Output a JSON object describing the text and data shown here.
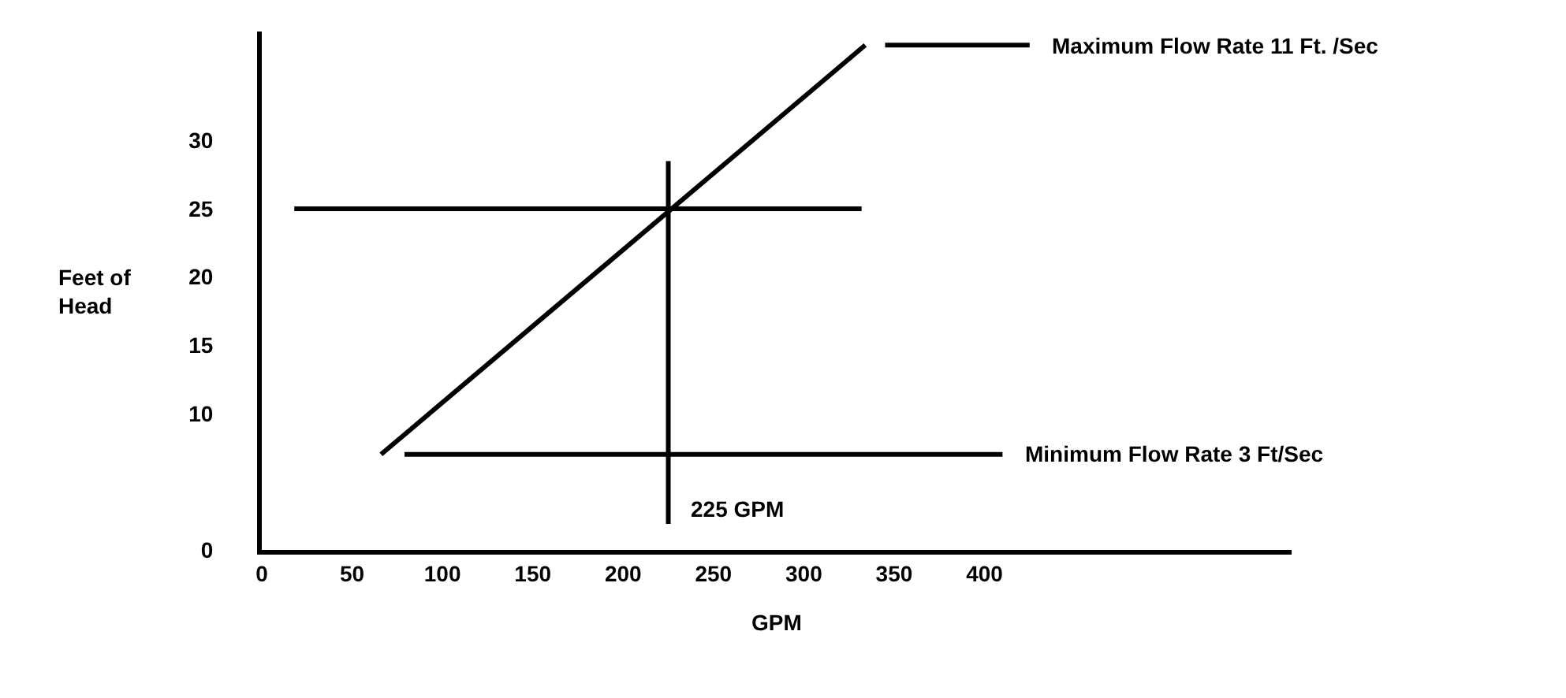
{
  "chart_data": {
    "type": "line",
    "xlabel": "GPM",
    "ylabel": "Feet of\nHead",
    "series": [
      {
        "color": "#000000",
        "x": [
          66,
          334
        ],
        "values": [
          7,
          37
        ]
      },
      {
        "color": "#000000",
        "x": [
          18,
          332
        ],
        "values": [
          25,
          25
        ]
      },
      {
        "color": "#000000",
        "x": [
          79,
          410
        ],
        "values": [
          7,
          7
        ]
      },
      {
        "color": "#000000",
        "x": [
          345,
          425
        ],
        "values": [
          37,
          37
        ]
      }
    ],
    "ref_lines": [
      {
        "axis": "x",
        "value": 225,
        "color": "#000000"
      }
    ],
    "annotations": [
      {
        "text": "Maximum Flow Rate 11 Ft. /Sec",
        "x": 425,
        "y": 37
      },
      {
        "text": "Minimum Flow Rate 3 Ft/Sec",
        "x": 410,
        "y": 7
      },
      {
        "text": "225 GPM",
        "x": 225,
        "y": 3
      }
    ],
    "xlim": [
      0,
      570
    ],
    "xticks": [
      0,
      50,
      100,
      150,
      200,
      250,
      300,
      350,
      400
    ],
    "ylim": [
      0,
      38
    ],
    "yticks": [
      0,
      10,
      15,
      20,
      25,
      30
    ],
    "marker": "none",
    "line_style": "solid"
  }
}
